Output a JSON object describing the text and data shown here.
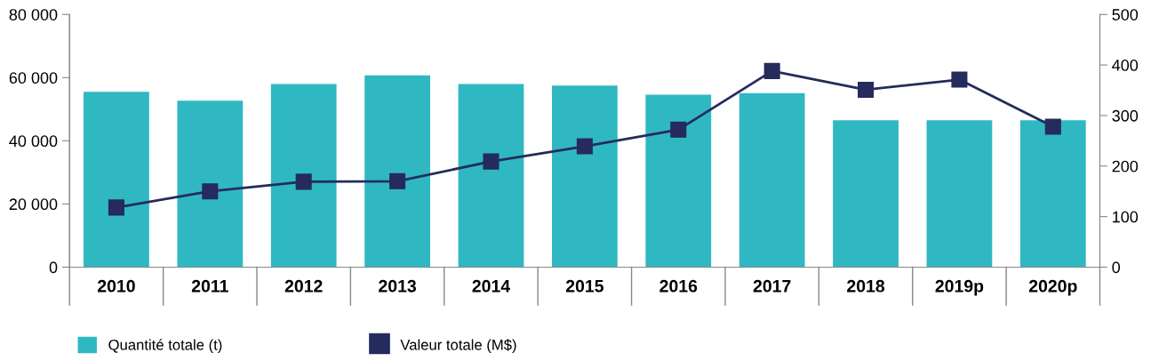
{
  "chart_data": {
    "type": "bar",
    "categories": [
      "2010",
      "2011",
      "2012",
      "2013",
      "2014",
      "2015",
      "2016",
      "2017",
      "2018",
      "2019p",
      "2020p"
    ],
    "series": [
      {
        "name": "Quantité totale (t)",
        "color": "#2fb8c2",
        "values": [
          55500,
          52700,
          58000,
          60700,
          58000,
          57500,
          54600,
          55100,
          46500,
          46500,
          46500
        ]
      },
      {
        "name": "Valeur totale (M$)",
        "type": "line",
        "axis": "y2",
        "color": "#252b5c",
        "marker": "square",
        "values": [
          118,
          150,
          169,
          170,
          209,
          239,
          272,
          388,
          351,
          371,
          278
        ]
      }
    ],
    "ylim": [
      0,
      80000
    ],
    "yticks": [
      0,
      {
        "value": 20000,
        "label": "20 000"
      },
      {
        "value": 40000,
        "label": "40 000"
      },
      {
        "value": 60000,
        "label": "60 000"
      },
      {
        "value": 80000,
        "label": "80 000"
      }
    ],
    "y2lim": [
      0,
      500
    ],
    "y2ticks": [
      0,
      100,
      200,
      300,
      400,
      500
    ],
    "grid": false,
    "legend": "bottom left"
  }
}
